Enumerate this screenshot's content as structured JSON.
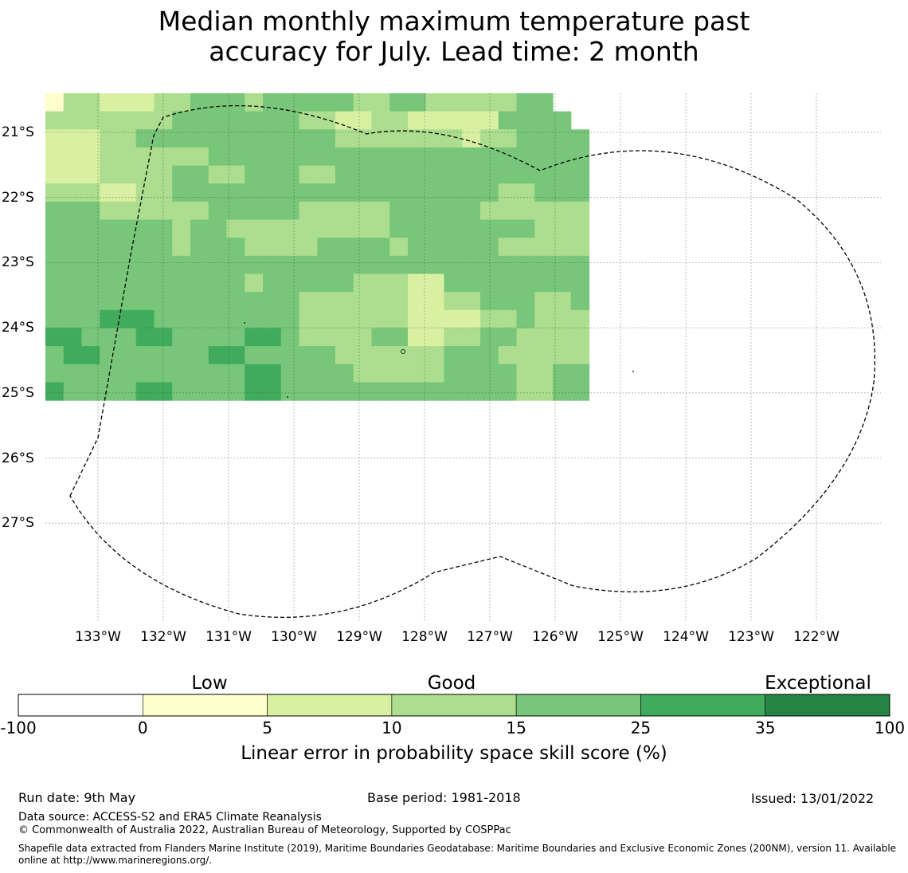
{
  "title_line1": "Median monthly maximum temperature past",
  "title_line2": "accuracy for July. Lead time: 2 month",
  "map": {
    "latitude_labels": [
      "21°S",
      "22°S",
      "23°S",
      "24°S",
      "25°S",
      "26°S",
      "27°S"
    ],
    "longitude_labels": [
      "133°W",
      "132°W",
      "131°W",
      "130°W",
      "129°W",
      "128°W",
      "127°W",
      "126°W",
      "125°W",
      "124°W",
      "123°W",
      "122°W"
    ],
    "grid_shown": true,
    "boundary_style": "dashed",
    "cell_category_legend": "0=0-5, 1=5-10, 2=10-15, 3=15-25, 4=25-35",
    "cells": [
      [
        0,
        2,
        2,
        1,
        1,
        1,
        2,
        2,
        3,
        3,
        3,
        2,
        3,
        3,
        3,
        3,
        3,
        2,
        2,
        3,
        3,
        2,
        2,
        2,
        2,
        2,
        3,
        3
      ],
      [
        2,
        2,
        2,
        2,
        2,
        2,
        2,
        3,
        3,
        3,
        3,
        3,
        3,
        3,
        2,
        2,
        1,
        1,
        2,
        2,
        1,
        1,
        1,
        1,
        1,
        3,
        3,
        3,
        3
      ],
      [
        1,
        1,
        1,
        2,
        2,
        3,
        3,
        3,
        3,
        3,
        3,
        3,
        3,
        3,
        3,
        3,
        2,
        2,
        2,
        2,
        2,
        2,
        2,
        1,
        2,
        2,
        3,
        3,
        3,
        3
      ],
      [
        1,
        1,
        1,
        2,
        2,
        2,
        2,
        2,
        2,
        3,
        3,
        3,
        3,
        3,
        3,
        3,
        3,
        3,
        3,
        3,
        3,
        3,
        3,
        3,
        3,
        3,
        3,
        3,
        3,
        3
      ],
      [
        1,
        1,
        1,
        2,
        2,
        2,
        2,
        3,
        3,
        2,
        2,
        3,
        3,
        3,
        2,
        2,
        3,
        3,
        3,
        3,
        3,
        3,
        3,
        3,
        3,
        3,
        3,
        3,
        3,
        3
      ],
      [
        2,
        2,
        2,
        1,
        1,
        2,
        2,
        3,
        3,
        3,
        3,
        3,
        3,
        3,
        3,
        3,
        3,
        3,
        3,
        3,
        3,
        3,
        3,
        3,
        3,
        2,
        2,
        3,
        3,
        3
      ],
      [
        3,
        3,
        3,
        2,
        2,
        2,
        2,
        2,
        2,
        3,
        3,
        3,
        3,
        3,
        2,
        2,
        2,
        2,
        2,
        3,
        3,
        3,
        3,
        3,
        2,
        2,
        2,
        2,
        2,
        2
      ],
      [
        3,
        3,
        3,
        3,
        3,
        3,
        3,
        2,
        3,
        3,
        2,
        2,
        2,
        2,
        2,
        2,
        2,
        2,
        2,
        3,
        3,
        3,
        3,
        3,
        3,
        3,
        3,
        2,
        2,
        2
      ],
      [
        3,
        3,
        3,
        3,
        3,
        3,
        3,
        2,
        3,
        3,
        3,
        2,
        2,
        2,
        2,
        3,
        3,
        3,
        3,
        2,
        3,
        3,
        3,
        3,
        3,
        2,
        2,
        2,
        2,
        2
      ],
      [
        3,
        3,
        3,
        3,
        3,
        3,
        3,
        3,
        3,
        3,
        3,
        3,
        3,
        3,
        3,
        3,
        3,
        3,
        3,
        3,
        3,
        3,
        3,
        3,
        3,
        3,
        3,
        3,
        3,
        3
      ],
      [
        3,
        3,
        3,
        3,
        3,
        3,
        3,
        3,
        3,
        3,
        3,
        2,
        3,
        3,
        3,
        3,
        3,
        2,
        2,
        2,
        1,
        1,
        3,
        3,
        3,
        3,
        3,
        3,
        3,
        3
      ],
      [
        3,
        3,
        3,
        3,
        3,
        3,
        3,
        3,
        3,
        3,
        3,
        3,
        3,
        3,
        2,
        2,
        2,
        2,
        2,
        2,
        1,
        1,
        2,
        2,
        3,
        3,
        3,
        2,
        2,
        3
      ],
      [
        3,
        3,
        3,
        4,
        4,
        4,
        3,
        3,
        3,
        3,
        3,
        3,
        3,
        3,
        2,
        2,
        2,
        2,
        2,
        2,
        1,
        1,
        1,
        1,
        2,
        2,
        3,
        2,
        2,
        2
      ],
      [
        4,
        4,
        3,
        3,
        3,
        4,
        4,
        3,
        3,
        3,
        3,
        4,
        4,
        3,
        2,
        2,
        2,
        2,
        3,
        3,
        1,
        1,
        2,
        2,
        3,
        3,
        2,
        2,
        2,
        2
      ],
      [
        3,
        4,
        4,
        3,
        3,
        3,
        3,
        3,
        3,
        4,
        4,
        3,
        3,
        3,
        3,
        3,
        2,
        2,
        2,
        2,
        2,
        2,
        3,
        3,
        3,
        2,
        2,
        2,
        2,
        2
      ],
      [
        3,
        3,
        3,
        3,
        3,
        3,
        3,
        3,
        3,
        3,
        3,
        4,
        4,
        3,
        3,
        3,
        3,
        2,
        2,
        2,
        2,
        2,
        3,
        3,
        3,
        3,
        2,
        2,
        3,
        3
      ],
      [
        4,
        3,
        3,
        3,
        3,
        4,
        4,
        3,
        3,
        3,
        3,
        4,
        4,
        3,
        3,
        3,
        3,
        3,
        3,
        3,
        3,
        3,
        3,
        3,
        3,
        3,
        2,
        2,
        3,
        3
      ]
    ]
  },
  "colorbar": {
    "categories": [
      "Low",
      "Good",
      "Exceptional"
    ],
    "ticks": [
      "-100",
      "0",
      "5",
      "10",
      "15",
      "25",
      "35",
      "100"
    ],
    "bin_colors": [
      "#ffffff",
      "#ffffcc",
      "#d9f0a3",
      "#addd8e",
      "#78c679",
      "#41ab5d",
      "#238443"
    ],
    "title": "Linear error in probability space skill score (%)"
  },
  "footer": {
    "run_date": "Run date: 9th May",
    "base_period": "Base period: 1981-2018",
    "issued": "Issued: 13/01/2022",
    "data_source": "Data source: ACCESS-S2 and ERA5 Climate Reanalysis",
    "copyright": "© Commonwealth of Australia 2022, Australian Bureau of Meteorology, Supported by COSPPac",
    "shapefile_note": "Shapefile data extracted from Flanders Marine Institute (2019), Maritime Boundaries Geodatabase: Maritime Boundaries and Exclusive Economic Zones (200NM), version 11. Available online at http://www.marineregions.org/."
  }
}
